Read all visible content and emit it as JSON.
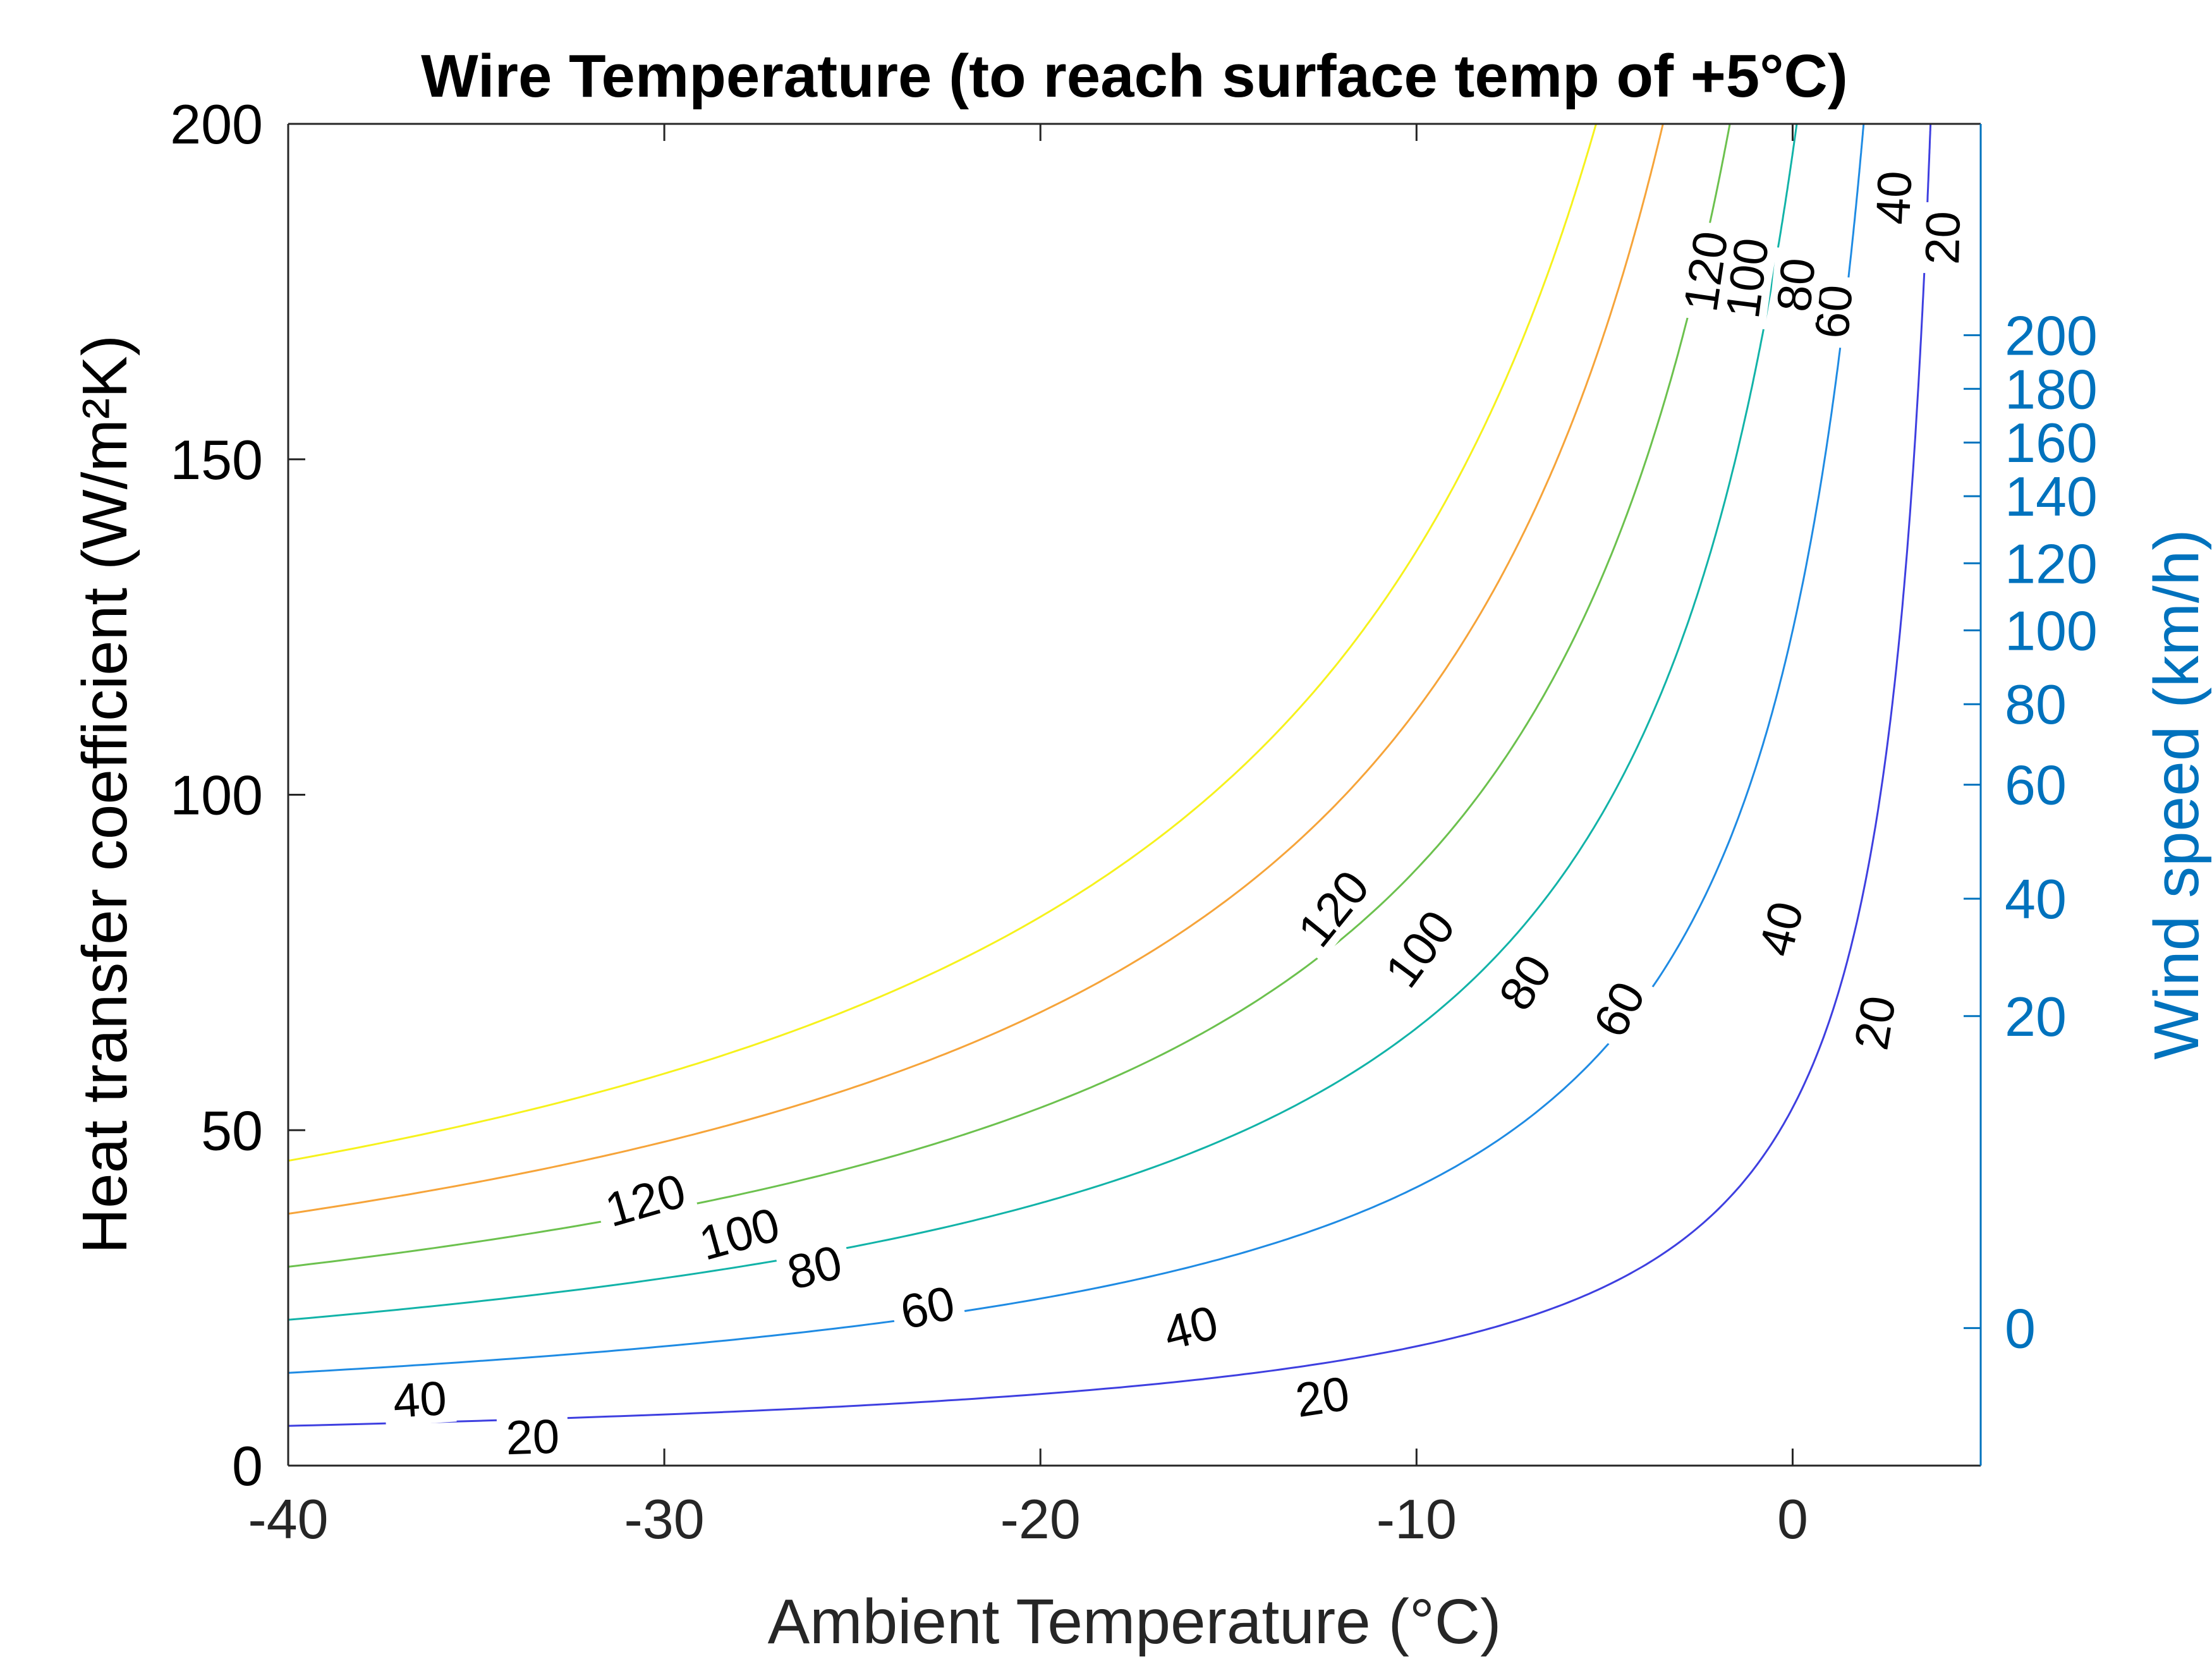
{
  "chart_data": {
    "type": "contour",
    "title": "Wire Temperature (to reach surface temp of +5°C)",
    "xlabel": "Ambient Temperature (°C)",
    "ylabel": "Heat transfer coefficient (W/m²K)",
    "y2label": "Wind speed (km/h)",
    "xlim": [
      -40,
      5
    ],
    "ylim": [
      0,
      200
    ],
    "xticks": [
      -40,
      -30,
      -20,
      -10,
      0
    ],
    "yticks": [
      0,
      50,
      100,
      150,
      200
    ],
    "y2ticks": [
      {
        "label": "0",
        "h": 20.5
      },
      {
        "label": "20",
        "h": 67
      },
      {
        "label": "40",
        "h": 84.5
      },
      {
        "label": "60",
        "h": 101.5
      },
      {
        "label": "80",
        "h": 113.5
      },
      {
        "label": "100",
        "h": 124.5
      },
      {
        "label": "120",
        "h": 134.5
      },
      {
        "label": "140",
        "h": 144.5
      },
      {
        "label": "160",
        "h": 152.5
      },
      {
        "label": "180",
        "h": 160.5
      },
      {
        "label": "200",
        "h": 168.5
      }
    ],
    "surface_temp": 5,
    "grid": false,
    "colors": {
      "axes": "#262626",
      "secondary_axis": "#0072BD"
    },
    "levels": [
      {
        "value": 20,
        "label": "20",
        "color": "#3E3FE0"
      },
      {
        "value": 40,
        "label": "40",
        "color": "#1F8BE3"
      },
      {
        "value": 60,
        "label": "60",
        "color": "#12B3A8"
      },
      {
        "value": 80,
        "label": "80",
        "color": "#6CC14E"
      },
      {
        "value": 100,
        "label": "100",
        "color": "#F6A43A"
      },
      {
        "value": 120,
        "label": "120",
        "color": "#F6F21D"
      }
    ],
    "contour_labels": [
      {
        "level": 20,
        "x": -33.5,
        "y": 4.2
      },
      {
        "level": 20,
        "x": -12.5,
        "y": 10.2
      },
      {
        "level": 20,
        "x": 2.2,
        "y": 66
      },
      {
        "level": 20,
        "x": 4.0,
        "y": 183
      },
      {
        "level": 40,
        "x": -36.5,
        "y": 9.8
      },
      {
        "level": 40,
        "x": -16.0,
        "y": 20.5
      },
      {
        "level": 40,
        "x": -0.3,
        "y": 80
      },
      {
        "level": 40,
        "x": 2.7,
        "y": 189
      },
      {
        "level": 60,
        "x": -23.0,
        "y": 23.5
      },
      {
        "level": 60,
        "x": -4.6,
        "y": 68
      },
      {
        "level": 60,
        "x": 1.1,
        "y": 172
      },
      {
        "level": 80,
        "x": -26.0,
        "y": 29.5
      },
      {
        "level": 80,
        "x": -7.1,
        "y": 72
      },
      {
        "level": 80,
        "x": 0.1,
        "y": 176
      },
      {
        "level": 100,
        "x": -28.0,
        "y": 34.5
      },
      {
        "level": 100,
        "x": -9.9,
        "y": 77
      },
      {
        "level": 100,
        "x": -1.2,
        "y": 177
      },
      {
        "level": 120,
        "x": -30.5,
        "y": 39.5
      },
      {
        "level": 120,
        "x": -12.2,
        "y": 83
      },
      {
        "level": 120,
        "x": -2.3,
        "y": 178
      }
    ]
  }
}
